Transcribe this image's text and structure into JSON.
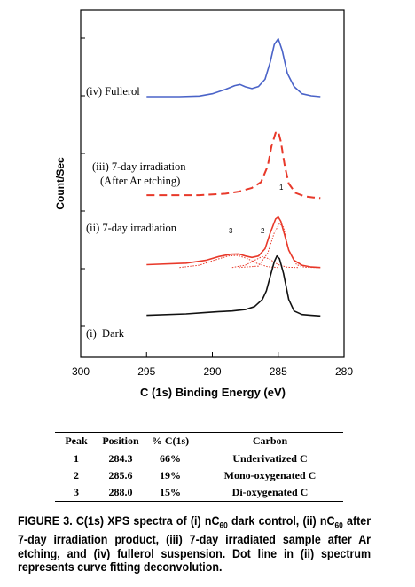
{
  "chart_data": {
    "type": "line",
    "xlabel": "C (1s) Binding Energy (eV)",
    "ylabel": "Count/Sec",
    "xlim": [
      300,
      280
    ],
    "x_ticks": [
      "300",
      "295",
      "290",
      "285",
      "280"
    ],
    "x_reversed": true,
    "series": [
      {
        "name": "(iv) Fullerol",
        "color": "#4a63c8",
        "style": "solid",
        "points": [
          [
            295.0,
            0.9
          ],
          [
            292.5,
            0.9
          ],
          [
            291.0,
            0.902
          ],
          [
            290.0,
            0.91
          ],
          [
            289.0,
            0.925
          ],
          [
            288.3,
            0.938
          ],
          [
            287.9,
            0.942
          ],
          [
            287.5,
            0.934
          ],
          [
            287.0,
            0.928
          ],
          [
            286.5,
            0.935
          ],
          [
            286.0,
            0.96
          ],
          [
            285.6,
            1.02
          ],
          [
            285.3,
            1.08
          ],
          [
            285.0,
            1.1
          ],
          [
            284.7,
            1.06
          ],
          [
            284.3,
            0.98
          ],
          [
            283.8,
            0.935
          ],
          [
            283.2,
            0.91
          ],
          [
            282.5,
            0.903
          ],
          [
            281.8,
            0.9
          ]
        ]
      },
      {
        "name": "(iii) 7-day irradiation (After Ar etching)",
        "color": "#e8392a",
        "style": "dashed",
        "points": [
          [
            295.0,
            0.56
          ],
          [
            291.0,
            0.56
          ],
          [
            289.0,
            0.565
          ],
          [
            288.0,
            0.572
          ],
          [
            287.0,
            0.585
          ],
          [
            286.3,
            0.605
          ],
          [
            285.8,
            0.66
          ],
          [
            285.5,
            0.73
          ],
          [
            285.2,
            0.775
          ],
          [
            285.0,
            0.78
          ],
          [
            284.8,
            0.745
          ],
          [
            284.5,
            0.66
          ],
          [
            284.2,
            0.6
          ],
          [
            283.7,
            0.568
          ],
          [
            283.0,
            0.556
          ],
          [
            282.3,
            0.552
          ],
          [
            281.8,
            0.55
          ]
        ]
      },
      {
        "name": "(ii) 7-day irradiation",
        "color": "#e8392a",
        "style": "solid",
        "points": [
          [
            295.0,
            0.32
          ],
          [
            292.0,
            0.325
          ],
          [
            290.5,
            0.335
          ],
          [
            289.5,
            0.348
          ],
          [
            288.6,
            0.356
          ],
          [
            288.0,
            0.357
          ],
          [
            287.5,
            0.35
          ],
          [
            287.0,
            0.345
          ],
          [
            286.5,
            0.35
          ],
          [
            286.0,
            0.375
          ],
          [
            285.6,
            0.43
          ],
          [
            285.2,
            0.478
          ],
          [
            285.0,
            0.485
          ],
          [
            284.8,
            0.47
          ],
          [
            284.5,
            0.42
          ],
          [
            284.2,
            0.37
          ],
          [
            283.8,
            0.335
          ],
          [
            283.2,
            0.318
          ],
          [
            282.5,
            0.312
          ],
          [
            281.8,
            0.31
          ]
        ]
      },
      {
        "name": "(ii) fit peak 1",
        "color": "#e8392a",
        "style": "dotted",
        "points": [
          [
            288.0,
            0.31
          ],
          [
            286.5,
            0.315
          ],
          [
            285.8,
            0.36
          ],
          [
            285.3,
            0.43
          ],
          [
            284.9,
            0.462
          ],
          [
            284.6,
            0.45
          ],
          [
            284.2,
            0.37
          ],
          [
            283.6,
            0.32
          ],
          [
            283.0,
            0.311
          ],
          [
            282.0,
            0.31
          ]
        ]
      },
      {
        "name": "(ii) fit peak 2",
        "color": "#e8392a",
        "style": "dotted",
        "points": [
          [
            288.5,
            0.31
          ],
          [
            287.5,
            0.318
          ],
          [
            286.8,
            0.335
          ],
          [
            286.2,
            0.348
          ],
          [
            285.7,
            0.34
          ],
          [
            285.0,
            0.32
          ],
          [
            284.3,
            0.311
          ],
          [
            283.5,
            0.31
          ]
        ]
      },
      {
        "name": "(ii) fit peak 3",
        "color": "#e8392a",
        "style": "dotted",
        "points": [
          [
            292.5,
            0.31
          ],
          [
            291.0,
            0.318
          ],
          [
            289.8,
            0.336
          ],
          [
            288.8,
            0.35
          ],
          [
            288.1,
            0.352
          ],
          [
            287.3,
            0.34
          ],
          [
            286.6,
            0.324
          ],
          [
            285.8,
            0.313
          ],
          [
            285.0,
            0.31
          ]
        ]
      },
      {
        "name": "(i) Dark",
        "color": "#111111",
        "style": "solid",
        "points": [
          [
            295.0,
            0.145
          ],
          [
            292.0,
            0.15
          ],
          [
            290.5,
            0.155
          ],
          [
            289.5,
            0.158
          ],
          [
            288.5,
            0.16
          ],
          [
            287.5,
            0.165
          ],
          [
            286.8,
            0.175
          ],
          [
            286.2,
            0.2
          ],
          [
            285.9,
            0.23
          ],
          [
            285.6,
            0.28
          ],
          [
            285.3,
            0.33
          ],
          [
            285.1,
            0.35
          ],
          [
            284.9,
            0.34
          ],
          [
            284.6,
            0.29
          ],
          [
            284.2,
            0.2
          ],
          [
            283.8,
            0.16
          ],
          [
            283.2,
            0.148
          ],
          [
            282.5,
            0.145
          ],
          [
            281.8,
            0.143
          ]
        ]
      }
    ],
    "curve_labels": [
      "(iv) Fullerol",
      "(iii) 7-day irradiation",
      "(After Ar etching)",
      "(ii) 7-day irradiation",
      "(i)  Dark"
    ],
    "peak_markers": [
      "1",
      "2",
      "3"
    ]
  },
  "table": {
    "headers": [
      "Peak",
      "Position",
      "% C(1s)",
      "Carbon"
    ],
    "rows": [
      [
        "1",
        "284.3",
        "66%",
        "Underivatized C"
      ],
      [
        "2",
        "285.6",
        "19%",
        "Mono-oxygenated C"
      ],
      [
        "3",
        "288.0",
        "15%",
        "Di-oxygenated C"
      ]
    ]
  },
  "caption": {
    "lead": "FIGURE 3. C(1s) XPS spectra of (i) nC",
    "sub1": "60",
    "mid1": " dark control, (ii) nC",
    "sub2": "60",
    "rest": " after 7-day irradiation product, (iii) 7-day irradiated sample after Ar etching, and (iv) fullerol suspension. Dot line in (ii) spectrum represents curve fitting deconvolution."
  }
}
